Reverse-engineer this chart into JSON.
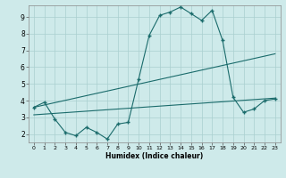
{
  "xlabel": "Humidex (Indice chaleur)",
  "bg_color": "#ceeaea",
  "grid_color": "#aacfcf",
  "line_color": "#1a6b6b",
  "xlim": [
    -0.5,
    23.5
  ],
  "ylim": [
    1.5,
    9.7
  ],
  "xticks": [
    0,
    1,
    2,
    3,
    4,
    5,
    6,
    7,
    8,
    9,
    10,
    11,
    12,
    13,
    14,
    15,
    16,
    17,
    18,
    19,
    20,
    21,
    22,
    23
  ],
  "yticks": [
    2,
    3,
    4,
    5,
    6,
    7,
    8,
    9
  ],
  "series1_x": [
    0,
    1,
    2,
    3,
    4,
    5,
    6,
    7,
    8,
    9,
    10,
    11,
    12,
    13,
    14,
    15,
    16,
    17,
    18,
    19,
    20,
    21,
    22,
    23
  ],
  "series1_y": [
    3.6,
    3.9,
    2.9,
    2.1,
    1.9,
    2.4,
    2.1,
    1.7,
    2.6,
    2.7,
    5.3,
    7.9,
    9.1,
    9.3,
    9.6,
    9.2,
    8.8,
    9.4,
    7.6,
    4.2,
    3.3,
    3.5,
    4.0,
    4.1
  ],
  "series2_x": [
    0,
    23
  ],
  "series2_y": [
    3.6,
    6.8
  ],
  "series3_x": [
    0,
    23
  ],
  "series3_y": [
    3.15,
    4.15
  ]
}
